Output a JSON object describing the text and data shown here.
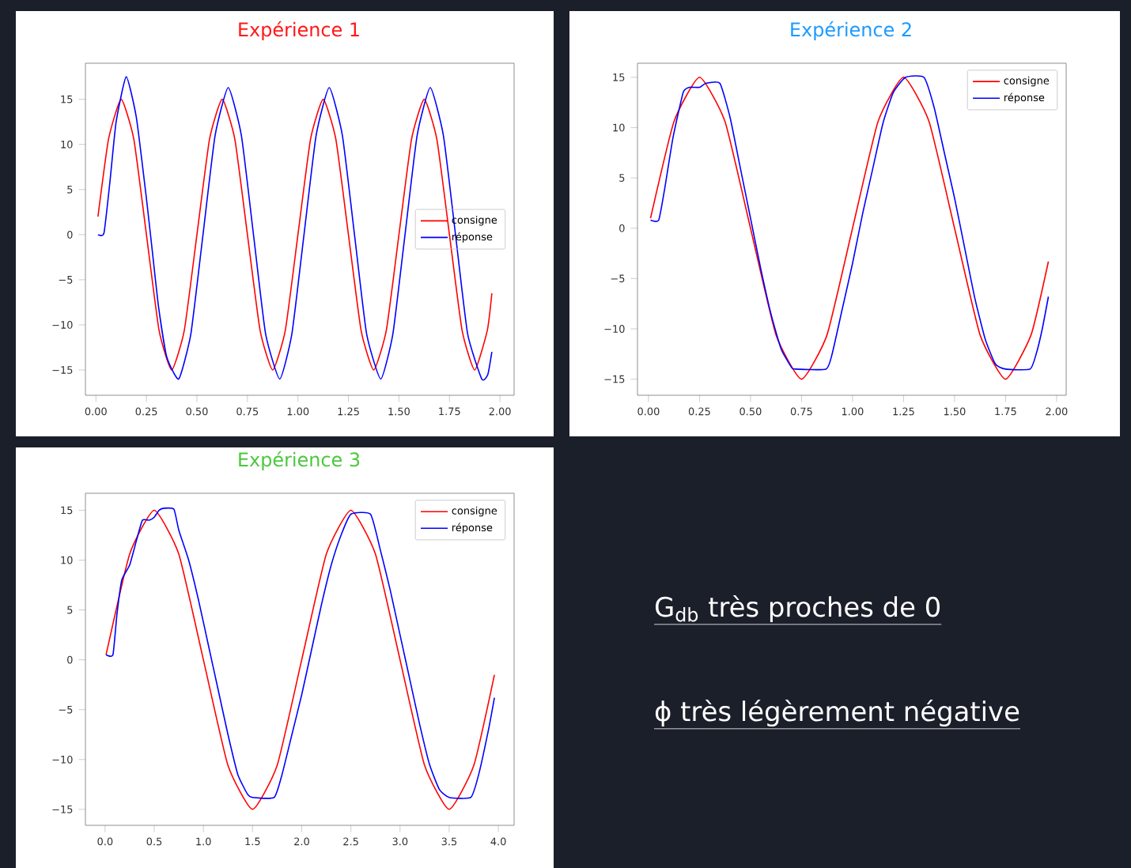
{
  "chart_data": [
    {
      "type": "line",
      "title": "Expérience 1",
      "legend": "right",
      "marker": "none",
      "line_style": "solid",
      "grid": false,
      "xlim": [
        -0.052,
        2.07
      ],
      "ylim": [
        -17.8,
        19.0
      ],
      "xticks": [
        {
          "value": 0,
          "label": "0.00"
        },
        0.25,
        {
          "value": 0.5,
          "label": "0.50"
        },
        0.75,
        {
          "value": 1,
          "label": "1.00"
        },
        1.25,
        {
          "value": 1.5,
          "label": "1.50"
        },
        1.75,
        {
          "value": 2,
          "label": "2.00"
        }
      ],
      "yticks": [
        {
          "value": -15,
          "label": "−15"
        },
        {
          "value": -10,
          "label": "−10"
        },
        {
          "value": -5,
          "label": "−5"
        },
        0,
        5,
        10,
        15
      ],
      "series": [
        {
          "name": "consigne",
          "color": "#ff0000",
          "x": [
            0.01,
            0.0625,
            0.125,
            0.1875,
            0.25,
            0.3125,
            0.375,
            0.4375,
            0.5,
            0.5625,
            0.625,
            0.6875,
            0.75,
            0.8125,
            0.875,
            0.9375,
            1.0,
            1.0625,
            1.125,
            1.1875,
            1.25,
            1.3125,
            1.375,
            1.4375,
            1.5,
            1.5625,
            1.625,
            1.6875,
            1.75,
            1.8125,
            1.875,
            1.9375,
            1.96
          ],
          "values": [
            2,
            10.6,
            15,
            10.6,
            0,
            -10.6,
            -15,
            -10.6,
            0,
            10.6,
            15,
            10.6,
            0,
            -10.6,
            -15,
            -10.6,
            0,
            10.6,
            15,
            10.6,
            0,
            -10.6,
            -15,
            -10.6,
            0,
            10.6,
            15,
            10.6,
            0,
            -10.6,
            -15,
            -10.6,
            -6.5
          ]
        },
        {
          "name": "réponse",
          "color": "#0000ff",
          "x": [
            0.01,
            0.04,
            0.07,
            0.1,
            0.15,
            0.2,
            0.25,
            0.28,
            0.31,
            0.35,
            0.41,
            0.47,
            0.53,
            0.59,
            0.655,
            0.72,
            0.78,
            0.84,
            0.91,
            0.97,
            1.03,
            1.09,
            1.155,
            1.22,
            1.28,
            1.34,
            1.41,
            1.47,
            1.53,
            1.59,
            1.655,
            1.72,
            1.78,
            1.84,
            1.91,
            1.94,
            1.96
          ],
          "values": [
            0,
            0.2,
            6,
            12.5,
            17.5,
            13,
            4,
            -2,
            -8,
            -13.5,
            -16,
            -11,
            0,
            11,
            16.3,
            11,
            0,
            -11,
            -16,
            -11,
            0,
            11,
            16.3,
            11,
            0,
            -11,
            -16,
            -11,
            0,
            11,
            16.3,
            11,
            0,
            -11,
            -16,
            -15.5,
            -13
          ]
        }
      ]
    },
    {
      "type": "line",
      "title": "Expérience 2",
      "legend": "top right",
      "marker": "none",
      "line_style": "solid",
      "grid": false,
      "xlim": [
        -0.054,
        2.047
      ],
      "ylim": [
        -16.6,
        16.4
      ],
      "xticks": [
        {
          "value": 0,
          "label": "0.00"
        },
        0.25,
        {
          "value": 0.5,
          "label": "0.50"
        },
        0.75,
        {
          "value": 1,
          "label": "1.00"
        },
        1.25,
        {
          "value": 1.5,
          "label": "1.50"
        },
        1.75,
        {
          "value": 2,
          "label": "2.00"
        }
      ],
      "yticks": [
        {
          "value": -15,
          "label": "−15"
        },
        {
          "value": -10,
          "label": "−10"
        },
        {
          "value": -5,
          "label": "−5"
        },
        0,
        5,
        10,
        15
      ],
      "series": [
        {
          "name": "consigne",
          "color": "#ff0000",
          "x": [
            0.01,
            0.125,
            0.25,
            0.375,
            0.5,
            0.625,
            0.75,
            0.875,
            1.0,
            1.125,
            1.25,
            1.375,
            1.5,
            1.625,
            1.75,
            1.875,
            1.96
          ],
          "values": [
            1,
            10.6,
            15,
            10.6,
            0,
            -10.6,
            -15,
            -10.6,
            0,
            10.6,
            15,
            10.6,
            0,
            -10.6,
            -15,
            -10.6,
            -3.3
          ]
        },
        {
          "name": "réponse",
          "color": "#0000ff",
          "x": [
            0.01,
            0.05,
            0.08,
            0.12,
            0.17,
            0.2,
            0.25,
            0.28,
            0.35,
            0.4,
            0.45,
            0.5,
            0.55,
            0.6,
            0.65,
            0.7,
            0.72,
            0.87,
            0.9,
            0.95,
            1.0,
            1.05,
            1.1,
            1.15,
            1.2,
            1.26,
            1.35,
            1.4,
            1.45,
            1.5,
            1.55,
            1.6,
            1.65,
            1.7,
            1.75,
            1.87,
            1.9,
            1.93,
            1.96
          ],
          "values": [
            0.8,
            0.8,
            4,
            9,
            13.5,
            14,
            14,
            14.4,
            14.4,
            11,
            6,
            1,
            -4,
            -8.5,
            -12,
            -13.8,
            -14,
            -14,
            -12.5,
            -8,
            -3.5,
            1.5,
            6,
            10.5,
            13.5,
            15,
            15,
            12,
            7.5,
            3,
            -2,
            -7,
            -11,
            -13.5,
            -14,
            -14,
            -12.5,
            -10,
            -6.8
          ]
        }
      ]
    },
    {
      "type": "line",
      "title": "Expérience 3",
      "legend": "top right",
      "marker": "none",
      "line_style": "solid",
      "grid": false,
      "xlim": [
        -0.2,
        4.16
      ],
      "ylim": [
        -16.6,
        16.7
      ],
      "xticks": [
        {
          "value": 0,
          "label": "0.0"
        },
        0.5,
        {
          "value": 1,
          "label": "1.0"
        },
        1.5,
        {
          "value": 2,
          "label": "2.0"
        },
        2.5,
        {
          "value": 3,
          "label": "3.0"
        },
        3.5,
        {
          "value": 4,
          "label": "4.0"
        }
      ],
      "yticks": [
        {
          "value": -15,
          "label": "−15"
        },
        {
          "value": -10,
          "label": "−10"
        },
        {
          "value": -5,
          "label": "−5"
        },
        0,
        5,
        10,
        15
      ],
      "series": [
        {
          "name": "consigne",
          "color": "#ff0000",
          "x": [
            0.01,
            0.25,
            0.5,
            0.75,
            1.0,
            1.25,
            1.5,
            1.75,
            2.0,
            2.25,
            2.5,
            2.75,
            3.0,
            3.25,
            3.5,
            3.75,
            3.96
          ],
          "values": [
            0.5,
            10.6,
            15,
            10.6,
            0,
            -10.6,
            -15,
            -10.6,
            0,
            10.6,
            15,
            10.6,
            0,
            -10.6,
            -15,
            -10.6,
            -1.5
          ]
        },
        {
          "name": "réponse",
          "color": "#0000ff",
          "x": [
            0.01,
            0.08,
            0.12,
            0.17,
            0.25,
            0.32,
            0.38,
            0.45,
            0.5,
            0.55,
            0.6,
            0.7,
            0.75,
            0.85,
            0.95,
            1.05,
            1.15,
            1.25,
            1.35,
            1.45,
            1.5,
            1.72,
            1.8,
            1.9,
            2.0,
            2.1,
            2.2,
            2.3,
            2.4,
            2.5,
            2.7,
            2.8,
            2.9,
            3.0,
            3.1,
            3.2,
            3.3,
            3.4,
            3.5,
            3.72,
            3.8,
            3.9,
            3.96
          ],
          "values": [
            0.5,
            0.5,
            4.5,
            8,
            9.5,
            12,
            14,
            14,
            14.3,
            15,
            15.2,
            15.1,
            13,
            10,
            6,
            1.5,
            -3,
            -7.5,
            -11.5,
            -13.5,
            -13.8,
            -13.8,
            -11.5,
            -7.5,
            -3.5,
            1,
            5.5,
            9.5,
            12.5,
            14.6,
            14.6,
            11,
            7,
            2.5,
            -2,
            -6.5,
            -10.5,
            -13,
            -13.8,
            -13.8,
            -11.5,
            -7,
            -3.8
          ]
        }
      ]
    },
    {
      "type": "other",
      "annotations": [
        "G$_{db}$ très proches de 0",
        "ϕ très légèrement négative"
      ]
    }
  ]
}
